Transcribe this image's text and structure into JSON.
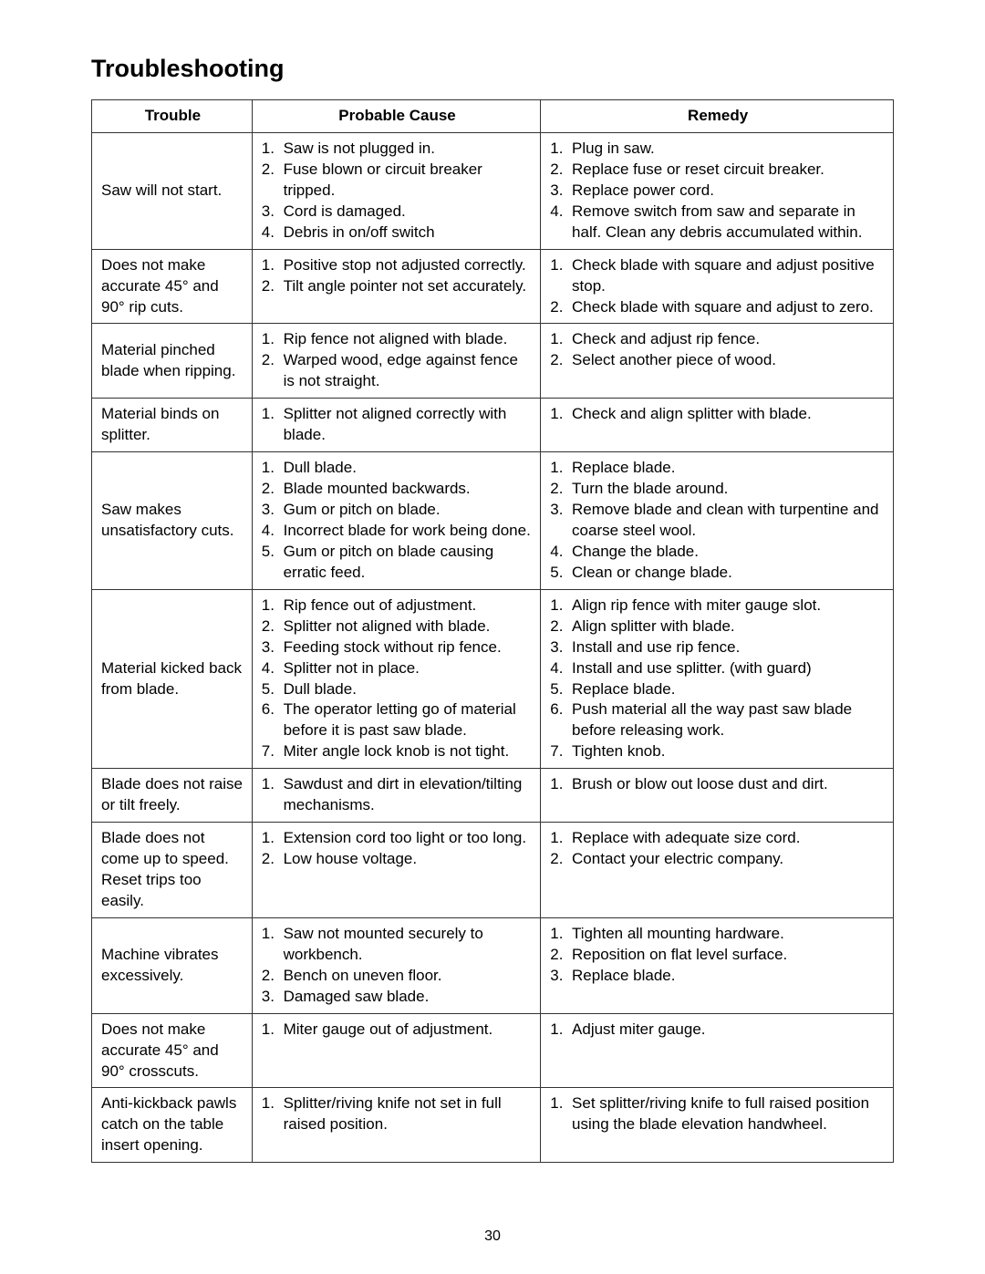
{
  "heading": "Troubleshooting",
  "page_number": "30",
  "columns": {
    "trouble": "Trouble",
    "cause": "Probable Cause",
    "remedy": "Remedy"
  },
  "rows": [
    {
      "trouble": "Saw will not start.",
      "causes": [
        "Saw is not plugged in.",
        "Fuse blown or circuit breaker tripped.",
        "Cord is damaged.",
        "Debris in on/off switch"
      ],
      "remedies": [
        "Plug in saw.",
        "Replace fuse or reset circuit breaker.\n",
        "Replace power cord.",
        "Remove switch from saw and separate in half. Clean any debris accumulated within."
      ]
    },
    {
      "trouble": "Does not make accurate 45° and 90° rip cuts.",
      "causes": [
        "Positive stop not adjusted correctly.",
        "Tilt angle pointer not set accurately."
      ],
      "remedies": [
        "Check blade with square and adjust positive stop.",
        "Check blade with square and adjust to zero."
      ]
    },
    {
      "trouble": "Material pinched blade when ripping.",
      "causes": [
        "Rip fence not aligned with blade.",
        "Warped wood, edge against fence is not straight."
      ],
      "remedies": [
        "Check and adjust rip fence.",
        "Select another piece of wood."
      ]
    },
    {
      "trouble": "Material binds on splitter.",
      "causes": [
        "Splitter not aligned correctly with blade."
      ],
      "remedies": [
        "Check and align splitter with blade."
      ]
    },
    {
      "trouble": "Saw makes unsatisfactory cuts.",
      "causes": [
        "Dull blade.",
        "Blade mounted backwards.",
        "Gum or pitch on blade.\n",
        "Incorrect blade for work being done.",
        "Gum or pitch on blade causing erratic feed."
      ],
      "remedies": [
        "Replace blade.",
        "Turn the blade around.",
        "Remove blade and clean with turpentine and coarse steel wool.",
        "Change the blade.\n",
        "Clean or change blade."
      ]
    },
    {
      "trouble": "Material kicked back\nfrom blade.",
      "causes": [
        "Rip fence out of adjustment.",
        "Splitter not aligned with blade.",
        "Feeding stock without rip fence.",
        "Splitter not in place.",
        "Dull blade.",
        "The operator letting go of material before it is past saw blade.",
        "Miter angle lock knob is not tight."
      ],
      "remedies": [
        "Align rip fence with miter gauge slot.",
        "Align splitter with blade.",
        "Install and use rip fence.",
        "Install and use splitter. (with guard)",
        "Replace blade.",
        "Push material all the way past saw blade before releasing work.",
        "Tighten knob."
      ]
    },
    {
      "trouble": "Blade does not raise or tilt freely.",
      "causes": [
        "Sawdust and dirt in elevation/tilting mechanisms."
      ],
      "remedies": [
        "Brush or blow out loose dust and dirt."
      ]
    },
    {
      "trouble": "Blade does not come up to speed. Reset trips too easily.",
      "causes": [
        "Extension cord too light or too long.",
        "Low house voltage."
      ],
      "remedies": [
        "Replace with adequate size cord.\n",
        "Contact your electric company."
      ]
    },
    {
      "trouble": "Machine vibrates excessively.",
      "causes": [
        "Saw not mounted securely to workbench.",
        "Bench on uneven floor.",
        "Damaged saw blade."
      ],
      "remedies": [
        "Tighten all mounting hardware.\n",
        "Reposition on flat level surface.",
        "Replace blade."
      ]
    },
    {
      "trouble": "Does not make accurate 45° and 90° crosscuts.",
      "causes": [
        "Miter gauge out of adjustment."
      ],
      "remedies": [
        "Adjust miter gauge."
      ]
    },
    {
      "trouble": "Anti-kickback pawls catch on the table insert opening.",
      "causes": [
        "Splitter/riving knife not set in full raised position."
      ],
      "remedies": [
        "Set splitter/riving knife to full raised position using the blade elevation handwheel."
      ]
    }
  ]
}
